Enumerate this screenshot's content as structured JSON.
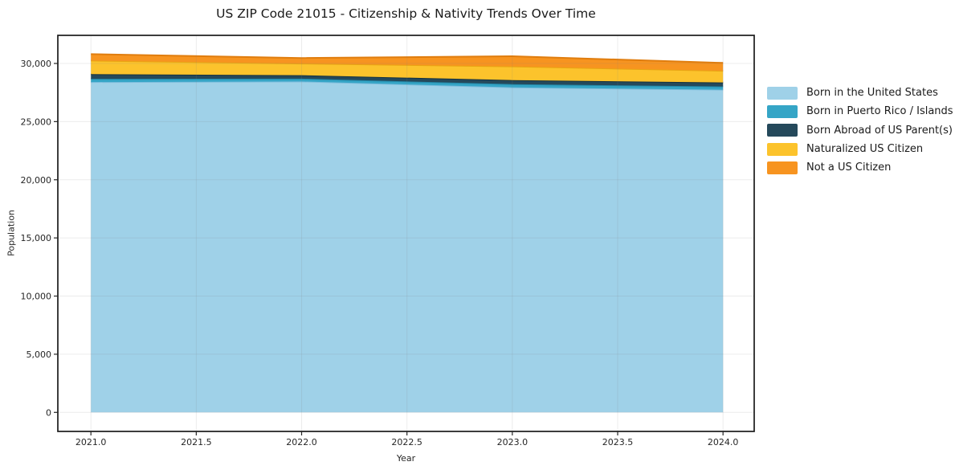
{
  "title": "US ZIP Code 21015 - Citizenship & Nativity Trends Over Time",
  "chart_data": {
    "type": "area",
    "stacked": true,
    "title": "US ZIP Code 21015 - Citizenship & Nativity Trends Over Time",
    "xlabel": "Year",
    "ylabel": "Population",
    "x": [
      2021,
      2022,
      2023,
      2024
    ],
    "series": [
      {
        "name": "Born in the United States",
        "color": "#9FD1E8",
        "edge_color": "#7CBCDC",
        "values": [
          28400,
          28450,
          27950,
          27750
        ]
      },
      {
        "name": "Born in Puerto Rico / Islands",
        "color": "#35A5C6",
        "edge_color": "#2388A8",
        "values": [
          280,
          240,
          270,
          270
        ]
      },
      {
        "name": "Born Abroad of US Parent(s)",
        "color": "#25495B",
        "edge_color": "#16323F",
        "values": [
          400,
          300,
          350,
          350
        ]
      },
      {
        "name": "Naturalized US Citizen",
        "color": "#FCC32C",
        "edge_color": "#E8A413",
        "values": [
          1170,
          1000,
          1180,
          1000
        ]
      },
      {
        "name": "Not a US Citizen",
        "color": "#F79420",
        "edge_color": "#E07D0E",
        "values": [
          550,
          480,
          870,
          680
        ]
      }
    ],
    "xlim": [
      2020.843,
      2024.148
    ],
    "ylim": [
      -1637,
      32416
    ],
    "x_ticks": [
      2021.0,
      2021.5,
      2022.0,
      2022.5,
      2023.0,
      2023.5,
      2024.0
    ],
    "x_tick_labels": [
      "2021.0",
      "2021.5",
      "2022.0",
      "2022.5",
      "2023.0",
      "2023.5",
      "2024.0"
    ],
    "y_ticks": [
      0,
      5000,
      10000,
      15000,
      20000,
      25000,
      30000
    ],
    "y_tick_labels": [
      "0",
      "5,000",
      "10,000",
      "15,000",
      "20,000",
      "25,000",
      "30,000"
    ],
    "grid": true,
    "legend_position": "right"
  }
}
